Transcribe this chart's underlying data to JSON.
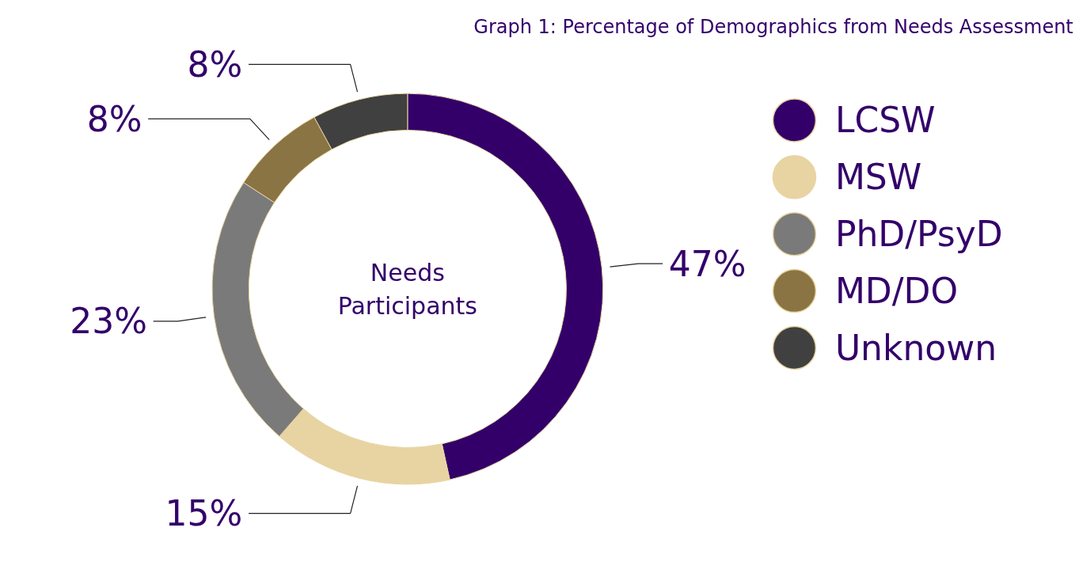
{
  "chart_data": {
    "type": "donut",
    "title": "Graph 1: Percentage of Demographics from Needs Assessment",
    "categories": [
      "LCSW",
      "MSW",
      "PhD/PsyD",
      "MD/DO",
      "Unknown"
    ],
    "values": [
      47,
      15,
      23,
      8,
      8
    ],
    "colors": [
      "#33006a",
      "#e8d4a2",
      "#7a7a7a",
      "#8b7443",
      "#404040"
    ],
    "value_labels": [
      "47%",
      "15%",
      "23%",
      "8%",
      "8%"
    ],
    "annotations": [
      "Needs\nParticipants"
    ],
    "legend": "right"
  }
}
